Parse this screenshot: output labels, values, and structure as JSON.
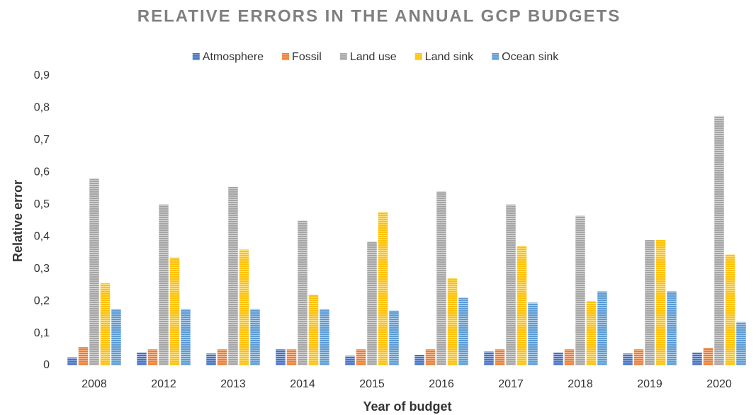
{
  "chart_data": {
    "type": "bar",
    "title": "RELATIVE ERRORS IN THE ANNUAL GCP BUDGETS",
    "xlabel": "Year of budget",
    "ylabel": "Relative error",
    "categories": [
      "2008",
      "2012",
      "2013",
      "2014",
      "2015",
      "2016",
      "2017",
      "2018",
      "2019",
      "2020"
    ],
    "series": [
      {
        "name": "Atmosphere",
        "color": "#4472c4",
        "values": [
          0.025,
          0.04,
          0.037,
          0.05,
          0.03,
          0.033,
          0.043,
          0.04,
          0.037,
          0.04
        ]
      },
      {
        "name": "Fossil",
        "color": "#ed7d31",
        "values": [
          0.057,
          0.05,
          0.05,
          0.05,
          0.05,
          0.05,
          0.05,
          0.05,
          0.05,
          0.055
        ]
      },
      {
        "name": "Land use",
        "color": "#a5a5a5",
        "values": [
          0.58,
          0.5,
          0.555,
          0.45,
          0.385,
          0.54,
          0.5,
          0.465,
          0.39,
          0.775
        ]
      },
      {
        "name": "Land sink",
        "color": "#ffc000",
        "values": [
          0.255,
          0.335,
          0.36,
          0.22,
          0.475,
          0.27,
          0.37,
          0.2,
          0.39,
          0.345
        ]
      },
      {
        "name": "Ocean sink",
        "color": "#5b9bd5",
        "values": [
          0.175,
          0.175,
          0.175,
          0.175,
          0.17,
          0.21,
          0.195,
          0.23,
          0.23,
          0.135
        ]
      }
    ],
    "ylim": [
      0,
      0.9
    ],
    "yticks": [
      0,
      {
        "value": 0.1,
        "label": "0,1"
      },
      {
        "value": 0.2,
        "label": "0,2"
      },
      {
        "value": 0.3,
        "label": "0,3"
      },
      {
        "value": 0.4,
        "label": "0,4"
      },
      {
        "value": 0.5,
        "label": "0,5"
      },
      {
        "value": 0.6,
        "label": "0,6"
      },
      {
        "value": 0.7,
        "label": "0,7"
      },
      {
        "value": 0.8,
        "label": "0,8"
      },
      {
        "value": 0.9,
        "label": "0,9"
      }
    ],
    "grid": false,
    "legend": "top"
  }
}
